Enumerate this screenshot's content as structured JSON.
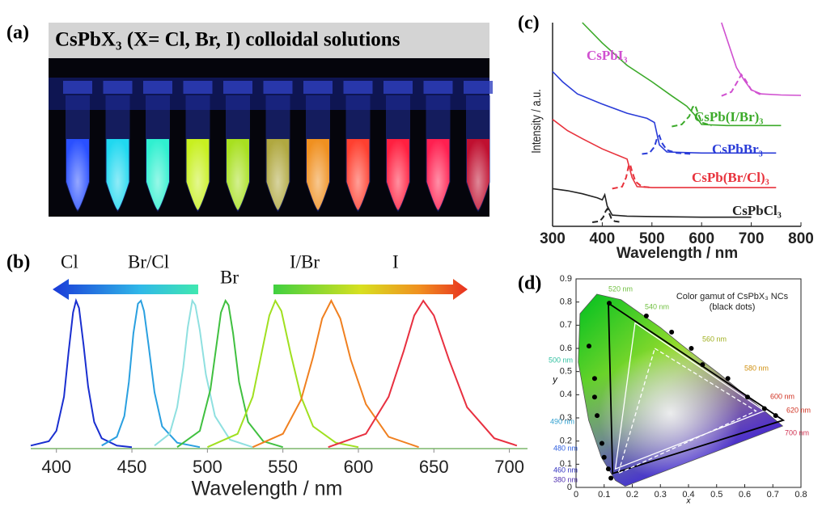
{
  "panel_a": {
    "label": "(a)",
    "title": "CsPbX₃ (X= Cl, Br, I) colloidal solutions"
  },
  "chart_data": [
    {
      "type": "line",
      "label": "(b)",
      "xlabel": "Wavelength / nm",
      "annotations": [
        "Cl",
        "Br/Cl",
        "Br",
        "I/Br",
        "I"
      ],
      "xlim": [
        383,
        712
      ],
      "xticks": [
        400,
        450,
        500,
        550,
        600,
        650,
        700
      ],
      "ylim": [
        0,
        1
      ],
      "series": [
        {
          "color": "#1a2fd0",
          "x": [
            383,
            395,
            400,
            405,
            408,
            411,
            413,
            415,
            418,
            421,
            425,
            430,
            440,
            450
          ],
          "values": [
            0.02,
            0.05,
            0.12,
            0.35,
            0.65,
            0.92,
            1,
            0.95,
            0.7,
            0.42,
            0.18,
            0.07,
            0.02,
            0.01
          ]
        },
        {
          "color": "#2aa0e0",
          "x": [
            430,
            440,
            445,
            448,
            451,
            454,
            456,
            458,
            461,
            465,
            470,
            480,
            495
          ],
          "values": [
            0.02,
            0.08,
            0.22,
            0.45,
            0.78,
            0.98,
            1,
            0.93,
            0.7,
            0.38,
            0.15,
            0.04,
            0.01
          ]
        },
        {
          "color": "#8fe0e0",
          "x": [
            465,
            475,
            480,
            484,
            487,
            490,
            492,
            495,
            499,
            505,
            515,
            530
          ],
          "values": [
            0.02,
            0.1,
            0.28,
            0.55,
            0.82,
            1,
            0.97,
            0.8,
            0.5,
            0.22,
            0.06,
            0.01
          ]
        },
        {
          "color": "#40c040",
          "x": [
            480,
            495,
            502,
            506,
            509,
            512,
            514,
            517,
            521,
            527,
            537,
            550
          ],
          "values": [
            0.01,
            0.12,
            0.4,
            0.7,
            0.92,
            1,
            0.97,
            0.78,
            0.45,
            0.18,
            0.05,
            0.01
          ]
        },
        {
          "color": "#a0e020",
          "x": [
            500,
            520,
            530,
            536,
            541,
            545,
            549,
            555,
            562,
            570,
            585,
            600
          ],
          "values": [
            0.01,
            0.1,
            0.35,
            0.65,
            0.9,
            1,
            0.93,
            0.65,
            0.35,
            0.15,
            0.04,
            0.01
          ]
        },
        {
          "color": "#f08020",
          "x": [
            530,
            550,
            562,
            570,
            576,
            582,
            588,
            595,
            605,
            620,
            640
          ],
          "values": [
            0.01,
            0.1,
            0.33,
            0.62,
            0.88,
            1,
            0.88,
            0.6,
            0.3,
            0.08,
            0.01
          ]
        },
        {
          "color": "#e83040",
          "x": [
            580,
            605,
            620,
            630,
            637,
            643,
            650,
            660,
            672,
            690,
            705
          ],
          "values": [
            0.01,
            0.1,
            0.35,
            0.66,
            0.9,
            1,
            0.9,
            0.6,
            0.28,
            0.07,
            0.02
          ]
        }
      ]
    },
    {
      "type": "line",
      "label": "(c)",
      "xlabel": "Wavelength / nm",
      "ylabel": "Intensity / a.u.",
      "xlim": [
        300,
        800
      ],
      "xticks": [
        300,
        400,
        500,
        600,
        700,
        800
      ],
      "ylim": [
        0,
        10
      ],
      "series": [
        {
          "name": "CsPbCl₃",
          "color": "#222222",
          "x": [
            300,
            330,
            360,
            390,
            400,
            405,
            410,
            420,
            450,
            500,
            600,
            700
          ],
          "values": [
            1.85,
            1.75,
            1.6,
            1.4,
            1.3,
            1.55,
            1.0,
            0.55,
            0.5,
            0.48,
            0.45,
            0.45
          ],
          "emission_x": [
            380,
            395,
            402,
            407,
            410,
            413,
            418,
            425,
            440
          ],
          "emission_values": [
            0.2,
            0.25,
            0.45,
            0.75,
            0.85,
            0.7,
            0.4,
            0.25,
            0.2
          ]
        },
        {
          "name": "CsPb(Br/Cl)₃",
          "color": "#e8323c",
          "x": [
            300,
            330,
            360,
            400,
            430,
            450,
            460,
            470,
            500,
            600,
            750
          ],
          "values": [
            5.25,
            4.7,
            4.3,
            3.8,
            3.5,
            3.3,
            2.4,
            1.95,
            1.9,
            1.9,
            1.9
          ],
          "emission_x": [
            420,
            440,
            448,
            453,
            456,
            460,
            467,
            480,
            500
          ],
          "emission_values": [
            1.85,
            1.95,
            2.4,
            2.95,
            3.05,
            2.7,
            2.2,
            1.95,
            1.9
          ]
        },
        {
          "name": "CsPbBr₃",
          "color": "#2a3cd8",
          "x": [
            300,
            320,
            350,
            400,
            450,
            490,
            505,
            515,
            530,
            600,
            750
          ],
          "values": [
            7.6,
            7.1,
            6.5,
            6.0,
            5.55,
            5.3,
            5.1,
            4.0,
            3.65,
            3.6,
            3.6
          ],
          "emission_x": [
            480,
            495,
            505,
            510,
            515,
            520,
            530,
            550,
            580
          ],
          "emission_values": [
            3.55,
            3.6,
            3.9,
            4.3,
            4.45,
            4.1,
            3.75,
            3.6,
            3.55
          ]
        },
        {
          "name": "CsPb(I/Br)₃",
          "color": "#3caa2a",
          "x": [
            360,
            400,
            450,
            500,
            540,
            570,
            585,
            600,
            650,
            760
          ],
          "values": [
            10,
            9.0,
            7.9,
            7.1,
            6.4,
            5.9,
            5.5,
            5.0,
            4.95,
            4.95
          ],
          "emission_x": [
            540,
            560,
            575,
            582,
            587,
            592,
            600,
            620
          ],
          "emission_values": [
            4.9,
            5.0,
            5.4,
            5.85,
            5.95,
            5.6,
            5.1,
            4.95
          ]
        },
        {
          "name": "CsPbI₃",
          "color": "#d050d0",
          "x": [
            640,
            655,
            670,
            685,
            700,
            720,
            760,
            800
          ],
          "values": [
            10,
            8.9,
            7.8,
            7.2,
            6.7,
            6.5,
            6.45,
            6.43
          ],
          "emission_x": [
            640,
            660,
            672,
            680,
            688,
            700,
            720
          ],
          "emission_values": [
            6.4,
            6.6,
            7.1,
            7.45,
            7.2,
            6.7,
            6.45
          ]
        }
      ]
    },
    {
      "type": "scatter",
      "label": "(d)",
      "title": "Color gamut of CsPbX₃ NCs",
      "subtitle": "(black dots)",
      "xlabel": "x",
      "ylabel": "y",
      "xlim": [
        0,
        0.8
      ],
      "xticks": [
        0,
        0.1,
        0.2,
        0.3,
        0.4,
        0.5,
        0.6,
        0.7,
        0.8
      ],
      "ylim": [
        0,
        0.9
      ],
      "yticks": [
        0,
        0.1,
        0.2,
        0.3,
        0.4,
        0.5,
        0.6,
        0.7,
        0.8,
        0.9
      ],
      "color": "#000000",
      "x": [
        0.046,
        0.066,
        0.066,
        0.075,
        0.092,
        0.1,
        0.115,
        0.124,
        0.118,
        0.25,
        0.34,
        0.41,
        0.45,
        0.54,
        0.61,
        0.67,
        0.71
      ],
      "values": [
        0.61,
        0.47,
        0.39,
        0.31,
        0.19,
        0.13,
        0.08,
        0.04,
        0.795,
        0.74,
        0.67,
        0.6,
        0.53,
        0.47,
        0.39,
        0.34,
        0.31
      ],
      "annotations": [
        "520 nm",
        "540 nm",
        "560 nm",
        "580 nm",
        "600 nm",
        "620 nm",
        "700 nm",
        "500 nm",
        "490 nm",
        "480 nm",
        "460 nm",
        "380 nm"
      ],
      "polygons": [
        {
          "color": "#000000",
          "x": [
            0.115,
            0.737,
            0.13
          ],
          "y": [
            0.795,
            0.29,
            0.06
          ]
        },
        {
          "color": "#ffffff",
          "x": [
            0.21,
            0.67,
            0.14
          ],
          "y": [
            0.71,
            0.33,
            0.08
          ]
        },
        {
          "color": "#ffffff",
          "dashed": true,
          "x": [
            0.28,
            0.64,
            0.15
          ],
          "y": [
            0.6,
            0.33,
            0.06
          ]
        }
      ]
    }
  ]
}
